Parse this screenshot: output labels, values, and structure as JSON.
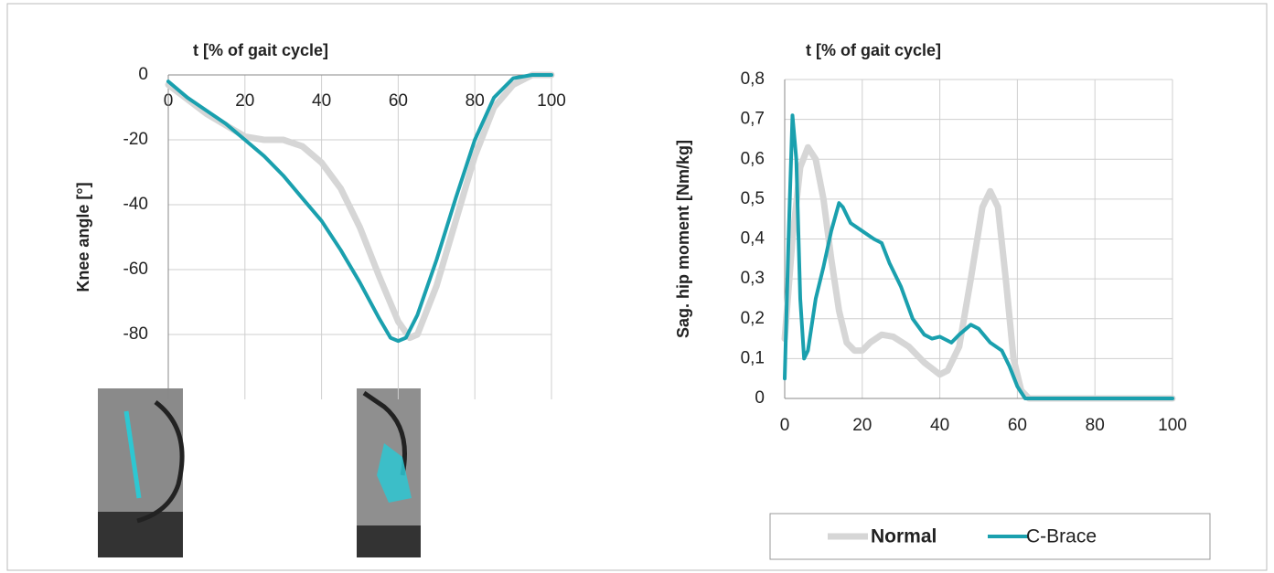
{
  "chart_data": [
    {
      "type": "line",
      "x_label": "t [% of gait cycle]",
      "y_label": "Knee angle [°]",
      "xlim": [
        0,
        100
      ],
      "xticks": [
        0,
        20,
        40,
        60,
        80,
        100
      ],
      "ylim": [
        -100,
        0
      ],
      "yticks": [
        0,
        -20,
        -40,
        -60,
        -80
      ],
      "grid": true,
      "series": [
        {
          "color": "#d6d6d6",
          "x": [
            0,
            10,
            20,
            25,
            30,
            35,
            40,
            45,
            50,
            55,
            60,
            63,
            65,
            70,
            75,
            80,
            85,
            90,
            95,
            100
          ],
          "values": [
            -3,
            -12,
            -19,
            -20,
            -20,
            -22,
            -27,
            -35,
            -47,
            -62,
            -76,
            -81,
            -80,
            -65,
            -45,
            -25,
            -10,
            -3,
            0,
            0
          ]
        },
        {
          "color": "#1aa0ae",
          "x": [
            0,
            5,
            10,
            15,
            20,
            25,
            30,
            35,
            40,
            45,
            50,
            55,
            58,
            60,
            62,
            65,
            70,
            75,
            80,
            85,
            90,
            95,
            100
          ],
          "values": [
            -2,
            -7,
            -11,
            -15,
            -20,
            -25,
            -31,
            -38,
            -45,
            -54,
            -64,
            -75,
            -81,
            -82,
            -81,
            -74,
            -57,
            -38,
            -20,
            -7,
            -1,
            0,
            0
          ]
        }
      ]
    },
    {
      "type": "line",
      "x_label": "t [% of gait cycle]",
      "y_label": "Sag. hip moment [Nm/kg]",
      "xlim": [
        0,
        100
      ],
      "xticks": [
        0,
        20,
        40,
        60,
        80,
        100
      ],
      "ylim": [
        0,
        0.8
      ],
      "yticks": [
        0,
        {
          "value": 0.1,
          "label": "0,1"
        },
        {
          "value": 0.2,
          "label": "0,2"
        },
        {
          "value": 0.3,
          "label": "0,3"
        },
        {
          "value": 0.4,
          "label": "0,4"
        },
        {
          "value": 0.5,
          "label": "0,5"
        },
        {
          "value": 0.6,
          "label": "0,6"
        },
        {
          "value": 0.7,
          "label": "0,7"
        },
        {
          "value": 0.8,
          "label": "0,8"
        }
      ],
      "grid": true,
      "legend": "bottom-right",
      "series": [
        {
          "name": "Normal",
          "color": "#d6d6d6",
          "x": [
            0,
            2,
            4,
            6,
            8,
            10,
            12,
            14,
            16,
            18,
            20,
            22,
            25,
            28,
            32,
            36,
            40,
            42,
            45,
            48,
            51,
            53,
            55,
            57,
            59,
            61,
            63,
            100
          ],
          "values": [
            0.15,
            0.4,
            0.58,
            0.63,
            0.6,
            0.5,
            0.35,
            0.22,
            0.14,
            0.12,
            0.12,
            0.14,
            0.16,
            0.155,
            0.13,
            0.09,
            0.06,
            0.07,
            0.13,
            0.3,
            0.48,
            0.52,
            0.48,
            0.3,
            0.1,
            0.02,
            0,
            0
          ]
        },
        {
          "name": "C-Brace",
          "color": "#1aa0ae",
          "x": [
            0,
            1,
            2,
            3,
            4,
            5,
            6,
            8,
            10,
            12,
            14,
            15,
            17,
            20,
            23,
            25,
            27,
            30,
            33,
            36,
            38,
            40,
            43,
            45,
            48,
            50,
            53,
            56,
            58,
            60,
            62,
            100
          ],
          "values": [
            0.05,
            0.4,
            0.71,
            0.6,
            0.25,
            0.1,
            0.12,
            0.25,
            0.33,
            0.42,
            0.49,
            0.48,
            0.44,
            0.42,
            0.4,
            0.39,
            0.34,
            0.28,
            0.2,
            0.16,
            0.15,
            0.155,
            0.14,
            0.16,
            0.185,
            0.175,
            0.14,
            0.12,
            0.08,
            0.03,
            0,
            0
          ]
        }
      ]
    }
  ]
}
